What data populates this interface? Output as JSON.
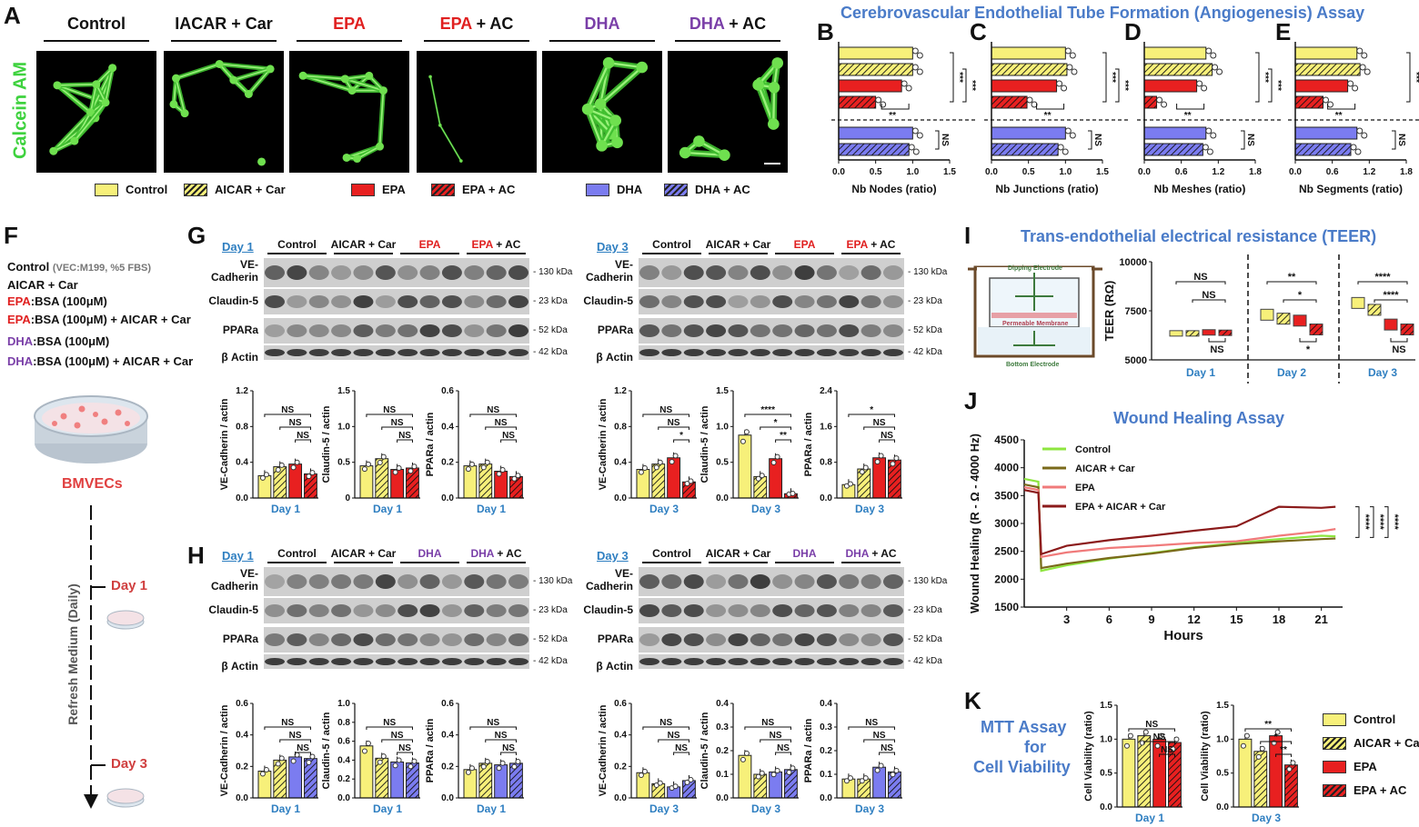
{
  "panels": {
    "A": "A",
    "B": "B",
    "C": "C",
    "D": "D",
    "E": "E",
    "F": "F",
    "G": "G",
    "H": "H",
    "I": "I",
    "J": "J",
    "K": "K"
  },
  "panelA": {
    "ylabel": "Calcein AM",
    "headers": [
      {
        "parts": [
          {
            "t": "Control",
            "c": "#111"
          }
        ]
      },
      {
        "parts": [
          {
            "t": "IACAR + Car",
            "c": "#111"
          }
        ]
      },
      {
        "parts": [
          {
            "t": "EPA",
            "c": "#e02020"
          }
        ]
      },
      {
        "parts": [
          {
            "t": "EPA",
            "c": "#e02020"
          },
          {
            "t": " + AC",
            "c": "#111"
          }
        ]
      },
      {
        "parts": [
          {
            "t": "DHA",
            "c": "#7a3fa8"
          }
        ]
      },
      {
        "parts": [
          {
            "t": "DHA",
            "c": "#7a3fa8"
          },
          {
            "t": " + AC",
            "c": "#111"
          }
        ]
      }
    ],
    "legend": [
      {
        "label": "Control",
        "color": "#f7f07a",
        "hatch": false
      },
      {
        "label": "AICAR + Car",
        "color": "#f7f07a",
        "hatch": true
      },
      {
        "label": "EPA",
        "color": "#e82020",
        "hatch": false
      },
      {
        "label": "EPA + AC",
        "color": "#e82020",
        "hatch": true
      },
      {
        "label": "DHA",
        "color": "#7b7cf0",
        "hatch": false
      },
      {
        "label": "DHA + AC",
        "color": "#7b7cf0",
        "hatch": true
      }
    ]
  },
  "tubeTitle": "Cerebrovascular Endothelial Tube Formation (Angiogenesis) Assay",
  "colors": {
    "yellow": "#f7f07a",
    "red": "#e82020",
    "blue": "#7b7cf0",
    "darkred": "#8b1a1a",
    "olive": "#7a6a1a",
    "pink": "#f07a7a",
    "green": "#8ee53f",
    "blueTitle": "#4a7bc8",
    "dayBlue": "#2f7fc1"
  },
  "chart_data": [
    {
      "id": "B",
      "type": "bar",
      "orientation": "horizontal",
      "xlabel": "Nb Nodes (ratio)",
      "xticks": [
        "0.0",
        "0.5",
        "1.0",
        "1.5"
      ],
      "xlim": [
        0,
        1.5
      ],
      "categories": [
        "Control",
        "AICAR + Car",
        "EPA",
        "EPA + AC",
        "DHA",
        "DHA + AC"
      ],
      "values": [
        1.0,
        1.0,
        0.85,
        0.5,
        1.0,
        0.95
      ],
      "sig": [
        "***",
        "***",
        "**",
        "NS"
      ]
    },
    {
      "id": "C",
      "type": "bar",
      "orientation": "horizontal",
      "xlabel": "Nb Junctions (ratio)",
      "xticks": [
        "0.0",
        "0.5",
        "1.0",
        "1.5"
      ],
      "xlim": [
        0,
        1.5
      ],
      "categories": [
        "Control",
        "AICAR + Car",
        "EPA",
        "EPA + AC",
        "DHA",
        "DHA + AC"
      ],
      "values": [
        1.0,
        1.02,
        0.88,
        0.48,
        1.0,
        0.9
      ],
      "sig": [
        "***",
        "***",
        "**",
        "NS"
      ]
    },
    {
      "id": "D",
      "type": "bar",
      "orientation": "horizontal",
      "xlabel": "Nb Meshes (ratio)",
      "xticks": [
        "0.0",
        "0.6",
        "1.2",
        "1.8"
      ],
      "xlim": [
        0,
        1.8
      ],
      "categories": [
        "Control",
        "AICAR + Car",
        "EPA",
        "EPA + AC",
        "DHA",
        "DHA + AC"
      ],
      "values": [
        1.0,
        1.1,
        0.85,
        0.2,
        1.0,
        0.95
      ],
      "sig": [
        "***",
        "***",
        "**",
        "NS"
      ]
    },
    {
      "id": "E",
      "type": "bar",
      "orientation": "horizontal",
      "xlabel": "Nb Segments (ratio)",
      "xticks": [
        "0.0",
        "0.6",
        "1.2",
        "1.8"
      ],
      "xlim": [
        0,
        1.8
      ],
      "categories": [
        "Control",
        "AICAR + Car",
        "EPA",
        "EPA + AC",
        "DHA",
        "DHA + AC"
      ],
      "values": [
        1.0,
        1.05,
        0.85,
        0.45,
        1.0,
        0.9
      ],
      "sig": [
        "***",
        "****",
        "**",
        "NS"
      ]
    },
    {
      "id": "G1a",
      "type": "bar",
      "ylabel": "VE-Cadherin / actin",
      "xlabel": "Day 1",
      "ylim": [
        0,
        1.2
      ],
      "yticks": [
        "0.0",
        "0.4",
        "0.8",
        "1.2"
      ],
      "values": [
        0.25,
        0.35,
        0.38,
        0.27
      ],
      "scheme": "epa",
      "sig": [
        "NS",
        "NS",
        "NS"
      ]
    },
    {
      "id": "G1b",
      "type": "bar",
      "ylabel": "Claudin-5 / actin",
      "xlabel": "Day 1",
      "ylim": [
        0,
        1.5
      ],
      "yticks": [
        "0",
        "0.5",
        "1.0",
        "1.5"
      ],
      "values": [
        0.45,
        0.55,
        0.4,
        0.42
      ],
      "scheme": "epa",
      "sig": [
        "NS",
        "NS",
        "NS"
      ]
    },
    {
      "id": "G1c",
      "type": "bar",
      "ylabel": "PPARa / actin",
      "xlabel": "Day 1",
      "ylim": [
        0,
        0.6
      ],
      "yticks": [
        "0.0",
        "0.2",
        "0.4",
        "0.6"
      ],
      "values": [
        0.18,
        0.19,
        0.15,
        0.12
      ],
      "scheme": "epa",
      "sig": [
        "NS",
        "NS",
        "NS"
      ]
    },
    {
      "id": "G3a",
      "type": "bar",
      "ylabel": "VE-Cadherin / actin",
      "xlabel": "Day 3",
      "ylim": [
        0,
        1.2
      ],
      "yticks": [
        "0.0",
        "0.4",
        "0.8",
        "1.2"
      ],
      "values": [
        0.32,
        0.38,
        0.45,
        0.18
      ],
      "scheme": "epa",
      "sig": [
        "NS",
        "NS",
        "*"
      ]
    },
    {
      "id": "G3b",
      "type": "bar",
      "ylabel": "Claudin-5 / actin",
      "xlabel": "Day 3",
      "ylim": [
        0,
        1.5
      ],
      "yticks": [
        "0.0",
        "0.5",
        "1.0",
        "1.5"
      ],
      "values": [
        0.88,
        0.3,
        0.55,
        0.06
      ],
      "scheme": "epa",
      "sig": [
        "****",
        "*",
        "**"
      ]
    },
    {
      "id": "G3c",
      "type": "bar",
      "ylabel": "PPARa / actin",
      "xlabel": "Day 3",
      "ylim": [
        0,
        2.4
      ],
      "yticks": [
        "0.0",
        "0.8",
        "1.6",
        "2.4"
      ],
      "values": [
        0.3,
        0.65,
        0.9,
        0.85
      ],
      "scheme": "epa",
      "sig": [
        "*",
        "NS",
        "NS"
      ]
    },
    {
      "id": "H1a",
      "type": "bar",
      "ylabel": "VE-Cadherin / actin",
      "xlabel": "Day 1",
      "ylim": [
        0,
        0.6
      ],
      "yticks": [
        "0.0",
        "0.2",
        "0.4",
        "0.6"
      ],
      "values": [
        0.17,
        0.24,
        0.26,
        0.25
      ],
      "scheme": "dha",
      "sig": [
        "NS",
        "NS",
        "NS"
      ]
    },
    {
      "id": "H1b",
      "type": "bar",
      "ylabel": "Claudin-5 / actin",
      "xlabel": "Day 1",
      "ylim": [
        0,
        1.0
      ],
      "yticks": [
        "0.0",
        "0.2",
        "0.4",
        "0.6",
        "0.8",
        "1.0"
      ],
      "values": [
        0.55,
        0.42,
        0.38,
        0.37
      ],
      "scheme": "dha",
      "sig": [
        "NS",
        "NS",
        "NS"
      ]
    },
    {
      "id": "H1c",
      "type": "bar",
      "ylabel": "PPARa / actin",
      "xlabel": "Day 1",
      "ylim": [
        0,
        0.6
      ],
      "yticks": [
        "0.0",
        "0.2",
        "0.4",
        "0.6"
      ],
      "values": [
        0.18,
        0.22,
        0.21,
        0.22
      ],
      "scheme": "dha",
      "sig": [
        "NS",
        "NS",
        "NS"
      ]
    },
    {
      "id": "H3a",
      "type": "bar",
      "ylabel": "VE-Cadherin / actin",
      "xlabel": "Day 3",
      "ylim": [
        0,
        0.6
      ],
      "yticks": [
        "0.0",
        "0.2",
        "0.4",
        "0.6"
      ],
      "values": [
        0.16,
        0.09,
        0.07,
        0.11
      ],
      "scheme": "dha",
      "sig": [
        "NS",
        "NS",
        "NS"
      ]
    },
    {
      "id": "H3b",
      "type": "bar",
      "ylabel": "Claudin-5 / actin",
      "xlabel": "Day 3",
      "ylim": [
        0,
        0.4
      ],
      "yticks": [
        "0.0",
        "0.1",
        "0.2",
        "0.3",
        "0.4"
      ],
      "values": [
        0.18,
        0.1,
        0.11,
        0.12
      ],
      "scheme": "dha",
      "sig": [
        "NS",
        "NS",
        "NS"
      ]
    },
    {
      "id": "H3c",
      "type": "bar",
      "ylabel": "PPARa / actin",
      "xlabel": "Day 3",
      "ylim": [
        0,
        0.4
      ],
      "yticks": [
        "0.0",
        "0.1",
        "0.2",
        "0.3",
        "0.4"
      ],
      "values": [
        0.08,
        0.08,
        0.13,
        0.11
      ],
      "scheme": "dha",
      "sig": [
        "NS",
        "NS",
        "NS"
      ]
    },
    {
      "id": "I",
      "type": "box",
      "ylabel": "TEER (RΩ)",
      "ylim": [
        5000,
        10000
      ],
      "yticks": [
        "5000",
        "7500",
        "10000"
      ],
      "groups": [
        {
          "day": "Day 1",
          "values": [
            6350,
            6350,
            6400,
            6380
          ]
        },
        {
          "day": "Day 2",
          "values": [
            7300,
            7100,
            7000,
            6550
          ]
        },
        {
          "day": "Day 3",
          "values": [
            7900,
            7550,
            6800,
            6550
          ]
        }
      ],
      "sig": {
        "Day 1": [
          "NS",
          "NS",
          "NS"
        ],
        "Day 2": [
          "**",
          "*",
          "*"
        ],
        "Day 3": [
          "****",
          "****",
          "NS"
        ]
      }
    },
    {
      "id": "J",
      "type": "line",
      "xlabel": "Hours",
      "ylabel": "Wound Healing (R - Ω - 4000 Hz)",
      "xlim": [
        0,
        22.5
      ],
      "ylim": [
        1500,
        4500
      ],
      "xticks": [
        "3",
        "6",
        "9",
        "12",
        "15",
        "18",
        "21"
      ],
      "yticks": [
        "1500",
        "2000",
        "2500",
        "3000",
        "3500",
        "4000",
        "4500"
      ],
      "series": [
        {
          "name": "Control",
          "x": [
            0,
            1,
            1.2,
            3,
            6,
            9,
            12,
            15,
            18,
            21,
            22
          ],
          "y": [
            3800,
            3750,
            2150,
            2250,
            2370,
            2470,
            2570,
            2650,
            2720,
            2780,
            2770
          ]
        },
        {
          "name": "AICAR + Car",
          "x": [
            0,
            1,
            1.2,
            3,
            6,
            9,
            12,
            15,
            18,
            21,
            22
          ],
          "y": [
            3700,
            3650,
            2200,
            2280,
            2380,
            2460,
            2560,
            2630,
            2680,
            2720,
            2730
          ]
        },
        {
          "name": "EPA",
          "x": [
            0,
            1,
            1.2,
            3,
            6,
            9,
            12,
            15,
            18,
            21,
            22
          ],
          "y": [
            3650,
            3600,
            2400,
            2480,
            2560,
            2600,
            2650,
            2680,
            2780,
            2860,
            2900
          ]
        },
        {
          "name": "EPA + AICAR + Car",
          "x": [
            0,
            1,
            1.2,
            3,
            6,
            9,
            12,
            15,
            18,
            21,
            22
          ],
          "y": [
            3600,
            3550,
            2450,
            2600,
            2700,
            2780,
            2870,
            2950,
            3300,
            3280,
            3300
          ]
        }
      ],
      "sig": [
        "****",
        "****",
        "****"
      ]
    },
    {
      "id": "K1",
      "type": "bar",
      "ylabel": "Cell Viability (ratio)",
      "xlabel": "Day 1",
      "ylim": [
        0,
        1.5
      ],
      "yticks": [
        "0.0",
        "0.5",
        "1.0",
        "1.5"
      ],
      "values": [
        1.0,
        1.05,
        1.0,
        0.95
      ],
      "scheme": "epa",
      "sig": [
        "NS",
        "NS",
        "NS"
      ]
    },
    {
      "id": "K3",
      "type": "bar",
      "ylabel": "Cell Viability (ratio)",
      "xlabel": "Day 3",
      "ylim": [
        0,
        1.5
      ],
      "yticks": [
        "0.0",
        "0.5",
        "1.0",
        "1.5"
      ],
      "values": [
        1.0,
        0.82,
        1.05,
        0.62
      ],
      "scheme": "epa",
      "sig": [
        "**",
        "*",
        "**"
      ]
    }
  ],
  "panelF": {
    "lines": [
      {
        "parts": [
          {
            "t": "Control ",
            "c": "#111",
            "b": true
          },
          {
            "t": "(VEC:M199, %5 FBS)",
            "c": "#777",
            "b": true,
            "s": 11
          }
        ]
      },
      {
        "parts": [
          {
            "t": "AICAR + Car",
            "c": "#111",
            "b": true
          }
        ]
      },
      {
        "parts": [
          {
            "t": "EPA",
            "c": "#e02020",
            "b": true
          },
          {
            "t": ":BSA (100μM)",
            "c": "#111",
            "b": true
          }
        ]
      },
      {
        "parts": [
          {
            "t": "EPA",
            "c": "#e02020",
            "b": true
          },
          {
            "t": ":BSA (100μM) + AICAR + Car",
            "c": "#111",
            "b": true
          }
        ]
      },
      {
        "parts": [
          {
            "t": "DHA",
            "c": "#7a3fa8",
            "b": true
          },
          {
            "t": ":BSA (100μM)",
            "c": "#111",
            "b": true
          }
        ]
      },
      {
        "parts": [
          {
            "t": "DHA",
            "c": "#7a3fa8",
            "b": true
          },
          {
            "t": ":BSA (100μM) + AICAR + Car",
            "c": "#111",
            "b": true
          }
        ]
      }
    ],
    "cells": "BMVECs",
    "axis": "Refresh Medium (Daily)",
    "day1": "Day 1",
    "day3": "Day 3"
  },
  "blotG": {
    "day1": "Day 1",
    "day3": "Day 3",
    "headers": [
      {
        "parts": [
          {
            "t": "Control",
            "c": "#111"
          }
        ]
      },
      {
        "parts": [
          {
            "t": "AICAR + Car",
            "c": "#111"
          }
        ]
      },
      {
        "parts": [
          {
            "t": "EPA",
            "c": "#e02020"
          }
        ]
      },
      {
        "parts": [
          {
            "t": "EPA",
            "c": "#e02020"
          },
          {
            "t": " + AC",
            "c": "#111"
          }
        ]
      }
    ],
    "rows": [
      "VE-\nCadherin",
      "Claudin-5",
      "PPARa",
      "β Actin"
    ],
    "kda": [
      "- 130 kDa",
      "- 23 kDa",
      "- 52 kDa",
      "- 42 kDa"
    ]
  },
  "blotH": {
    "day1": "Day 1",
    "day3": "Day 3",
    "headers": [
      {
        "parts": [
          {
            "t": "Control",
            "c": "#111"
          }
        ]
      },
      {
        "parts": [
          {
            "t": "AICAR + Car",
            "c": "#111"
          }
        ]
      },
      {
        "parts": [
          {
            "t": "DHA",
            "c": "#7a3fa8"
          }
        ]
      },
      {
        "parts": [
          {
            "t": "DHA",
            "c": "#7a3fa8"
          },
          {
            "t": " + AC",
            "c": "#111"
          }
        ]
      }
    ],
    "rows": [
      "VE-\nCadherin",
      "Claudin-5",
      "PPARa",
      "β Actin"
    ],
    "kda": [
      "- 130 kDa",
      "- 23 kDa",
      "- 52 kDa",
      "- 42 kDa"
    ]
  },
  "panelI": {
    "title": "Trans-endothelial electrical resistance (TEER)",
    "dipping": "Dipping Electrode",
    "membrane": "Permeable Membrane",
    "bottom": "Bottom Electrode"
  },
  "panelJ": {
    "title": "Wound Healing Assay"
  },
  "panelK": {
    "title": [
      "MTT Assay",
      "for",
      "Cell Viability"
    ],
    "legend": [
      {
        "label": "Control",
        "color": "#f7f07a",
        "hatch": false
      },
      {
        "label": "AICAR + Car",
        "color": "#f7f07a",
        "hatch": true
      },
      {
        "label": "EPA",
        "color": "#e82020",
        "hatch": false
      },
      {
        "label": "EPA + AC",
        "color": "#e82020",
        "hatch": true
      }
    ]
  }
}
